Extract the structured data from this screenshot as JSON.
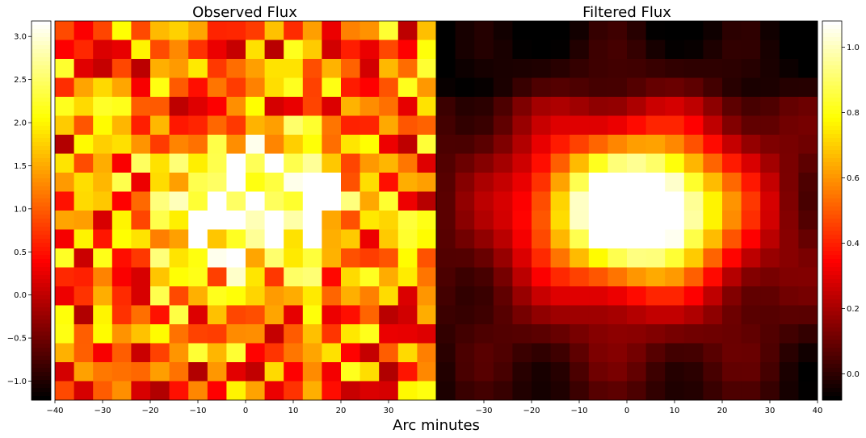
{
  "figure": {
    "xlabel": "Arc minutes"
  },
  "chart_data": [
    {
      "type": "heatmap",
      "title": "Observed Flux",
      "colormap": "hot",
      "x_ticks": [
        -40,
        -30,
        -20,
        -10,
        0,
        10,
        20,
        30
      ],
      "x_tick_labels": [
        "−40",
        "−30",
        "−20",
        "−10",
        "0",
        "10",
        "20",
        "30"
      ],
      "xlim": [
        -40,
        40
      ],
      "colorbar": {
        "side": "left",
        "range": [
          -1.22,
          3.18
        ],
        "ticks": [
          -1.0,
          -0.5,
          0.0,
          0.5,
          1.0,
          1.5,
          2.0,
          2.5,
          3.0
        ],
        "tick_labels": [
          "−1.0",
          "−0.5",
          "0.0",
          "0.5",
          "1.0",
          "1.5",
          "2.0",
          "2.5",
          "3.0"
        ]
      },
      "grid": false,
      "peak": {
        "x": 1,
        "y": 9,
        "value": 3.1
      }
    },
    {
      "type": "heatmap",
      "title": "Filtered Flux",
      "colormap": "hot",
      "x_ticks": [
        -30,
        -20,
        -10,
        0,
        10,
        20,
        30,
        40
      ],
      "x_tick_labels": [
        "−30",
        "−20",
        "−10",
        "0",
        "10",
        "20",
        "30",
        "40"
      ],
      "xlim": [
        -40,
        40
      ],
      "colorbar": {
        "side": "right",
        "range": [
          -0.08,
          1.08
        ],
        "ticks": [
          0.0,
          0.2,
          0.4,
          0.6,
          0.8,
          1.0
        ],
        "tick_labels": [
          "0.0",
          "0.2",
          "0.4",
          "0.6",
          "0.8",
          "1.0"
        ]
      },
      "grid": false,
      "peak": {
        "x": 0,
        "y": 10,
        "value": 1.07
      }
    }
  ]
}
